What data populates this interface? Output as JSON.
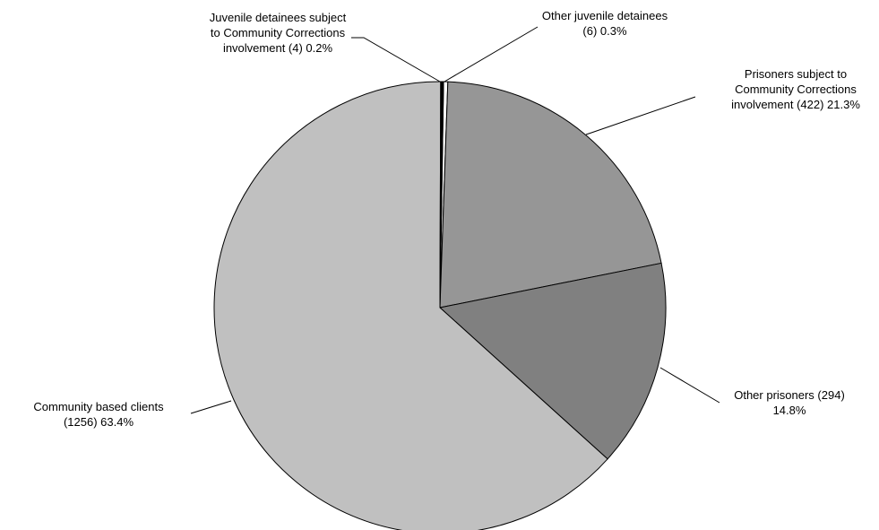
{
  "chart_data": {
    "type": "pie",
    "title": "",
    "slices": [
      {
        "name": "Other juvenile detainees",
        "count": 6,
        "percent": 0.3,
        "color": "#ffffff",
        "label_lines": [
          "Other juvenile detainees",
          "(6) 0.3%"
        ]
      },
      {
        "name": "Prisoners subject to Community Corrections involvement",
        "count": 422,
        "percent": 21.3,
        "color": "#969696",
        "label_lines": [
          "Prisoners subject to",
          "Community Corrections",
          "involvement  (422) 21.3%"
        ]
      },
      {
        "name": "Other prisoners",
        "count": 294,
        "percent": 14.8,
        "color": "#808080",
        "label_lines": [
          "Other prisoners  (294)",
          "14.8%"
        ]
      },
      {
        "name": "Community based clients",
        "count": 1256,
        "percent": 63.4,
        "color": "#c0c0c0",
        "label_lines": [
          "Community based clients",
          "(1256) 63.4%"
        ]
      },
      {
        "name": "Juvenile detainees subject to Community Corrections involvement",
        "count": 4,
        "percent": 0.2,
        "color": "#000000",
        "label_lines": [
          "Juvenile detainees subject",
          "to Community Corrections",
          "involvement (4) 0.2%"
        ]
      }
    ]
  }
}
